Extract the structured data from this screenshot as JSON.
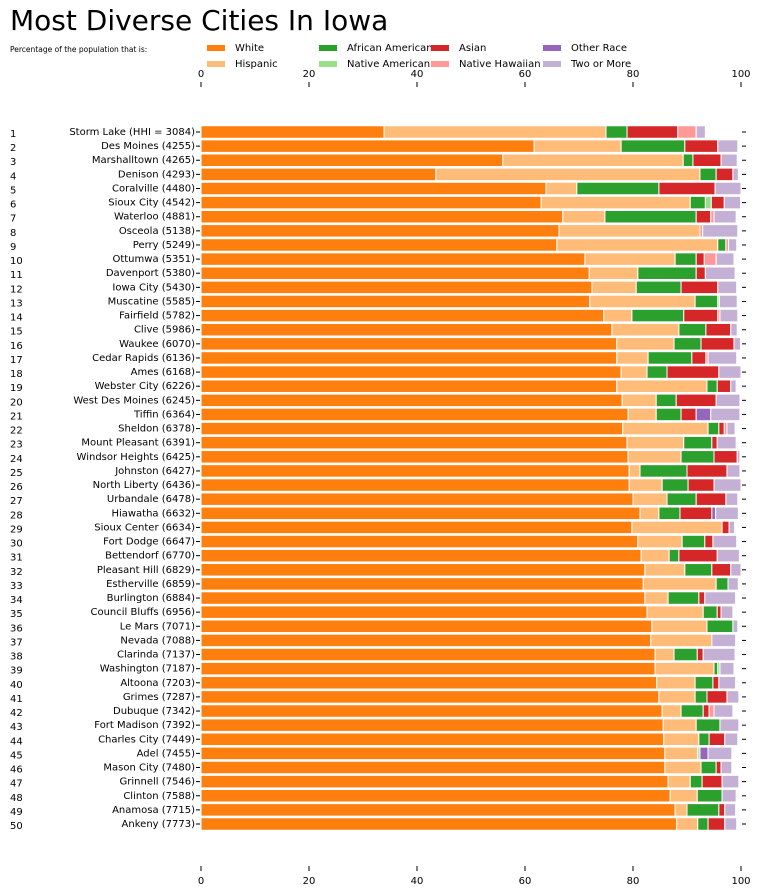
{
  "chart_data": {
    "type": "stacked-barh",
    "title": "Most Diverse Cities In Iowa",
    "subtitle": "Percentage of the population that is:",
    "rank_labels": [
      1,
      2,
      3,
      4,
      5,
      6,
      7,
      8,
      9,
      10,
      11,
      12,
      13,
      14,
      15,
      16,
      17,
      18,
      19,
      20,
      21,
      22,
      23,
      24,
      25,
      26,
      27,
      28,
      29,
      30,
      31,
      32,
      33,
      34,
      35,
      36,
      37,
      38,
      39,
      40,
      41,
      42,
      43,
      44,
      45,
      46,
      47,
      48,
      49,
      50
    ],
    "categories": [
      "Storm Lake (HHI = 3084)",
      "Des Moines (4255)",
      "Marshalltown (4265)",
      "Denison (4293)",
      "Coralville (4480)",
      "Sioux City (4542)",
      "Waterloo (4881)",
      "Osceola (5138)",
      "Perry (5249)",
      "Ottumwa (5351)",
      "Davenport (5380)",
      "Iowa City (5430)",
      "Muscatine (5585)",
      "Fairfield (5782)",
      "Clive (5986)",
      "Waukee (6070)",
      "Cedar Rapids (6136)",
      "Ames (6168)",
      "Webster City (6226)",
      "West Des Moines (6245)",
      "Tiffin (6364)",
      "Sheldon (6378)",
      "Mount Pleasant (6391)",
      "Windsor Heights (6425)",
      "Johnston (6427)",
      "North Liberty (6436)",
      "Urbandale (6478)",
      "Hiawatha (6632)",
      "Sioux Center (6634)",
      "Fort Dodge (6647)",
      "Bettendorf (6770)",
      "Pleasant Hill (6829)",
      "Estherville (6859)",
      "Burlington (6884)",
      "Council Bluffs (6956)",
      "Le Mars (7071)",
      "Nevada (7088)",
      "Clarinda (7137)",
      "Washington (7187)",
      "Altoona (7203)",
      "Grimes (7287)",
      "Dubuque (7342)",
      "Fort Madison (7392)",
      "Charles City (7449)",
      "Adel (7455)",
      "Mason City (7480)",
      "Grinnell (7546)",
      "Clinton (7588)",
      "Anamosa (7715)",
      "Ankeny (7773)"
    ],
    "series": [
      {
        "name": "White",
        "color": "#ff7f0e",
        "values": [
          33.9,
          61.7,
          55.9,
          43.5,
          63.9,
          63.0,
          67.0,
          66.3,
          65.9,
          71.1,
          71.9,
          72.4,
          72.0,
          74.6,
          76.1,
          77.0,
          77.0,
          77.8,
          77.0,
          78.0,
          79.1,
          78.1,
          78.9,
          79.1,
          79.3,
          79.3,
          80.0,
          81.3,
          79.8,
          80.9,
          81.5,
          82.2,
          81.9,
          82.2,
          82.6,
          83.5,
          83.3,
          84.1,
          84.1,
          84.4,
          84.8,
          85.4,
          85.6,
          85.7,
          85.9,
          85.9,
          86.5,
          86.9,
          87.8,
          88.1
        ]
      },
      {
        "name": "Hispanic",
        "color": "#ffbb78",
        "values": [
          41.1,
          16.1,
          33.4,
          48.9,
          5.7,
          27.6,
          7.8,
          26.1,
          29.8,
          16.7,
          9.0,
          8.2,
          19.5,
          5.2,
          12.4,
          10.6,
          5.8,
          4.8,
          16.7,
          6.3,
          5.2,
          15.8,
          10.5,
          9.8,
          2.0,
          6.1,
          6.3,
          3.5,
          16.7,
          8.2,
          5.2,
          7.4,
          13.5,
          4.3,
          10.4,
          10.2,
          11.3,
          3.5,
          10.9,
          7.1,
          6.7,
          3.5,
          6.1,
          6.5,
          6.1,
          6.7,
          4.1,
          5.0,
          2.2,
          3.9
        ]
      },
      {
        "name": "African American",
        "color": "#2ca02c",
        "values": [
          3.9,
          11.8,
          1.8,
          3.0,
          15.2,
          2.8,
          16.9,
          0,
          1.5,
          3.9,
          10.8,
          8.3,
          4.2,
          9.6,
          5.0,
          5.0,
          8.1,
          3.7,
          1.9,
          3.7,
          4.6,
          2.0,
          5.2,
          6.1,
          8.7,
          4.8,
          5.4,
          3.9,
          0,
          4.2,
          1.8,
          5.0,
          2.2,
          5.7,
          2.6,
          4.8,
          0,
          4.3,
          0.7,
          3.3,
          2.2,
          4.1,
          4.4,
          1.9,
          0,
          2.8,
          2.2,
          4.6,
          5.9,
          1.9
        ]
      },
      {
        "name": "Native American",
        "color": "#98df8a",
        "values": [
          0,
          0,
          0,
          0,
          0,
          1.1,
          0,
          0,
          0,
          0,
          0,
          0,
          0.3,
          0,
          0,
          0,
          0,
          0,
          0,
          0,
          0,
          0,
          0,
          0,
          0,
          0,
          0,
          0,
          0,
          0,
          0,
          0,
          0,
          0,
          0,
          0,
          0,
          0,
          0.4,
          0,
          0,
          0,
          0,
          0,
          0.4,
          0,
          0,
          0,
          0,
          0
        ]
      },
      {
        "name": "Asian",
        "color": "#d62728",
        "values": [
          9.4,
          6.1,
          5.2,
          3.1,
          10.4,
          2.4,
          2.7,
          0,
          0,
          1.5,
          1.7,
          6.8,
          0,
          6.3,
          4.6,
          6.1,
          2.6,
          9.6,
          2.5,
          7.4,
          2.8,
          1.0,
          1.0,
          4.3,
          7.4,
          4.8,
          5.5,
          5.9,
          1.3,
          1.5,
          7.1,
          3.5,
          0,
          1.1,
          0.7,
          0,
          0,
          1.1,
          0,
          1.1,
          3.7,
          1.1,
          0,
          2.9,
          0,
          0.9,
          3.7,
          0,
          1.1,
          3.1
        ]
      },
      {
        "name": "Native Hawaiian",
        "color": "#ff9896",
        "values": [
          3.4,
          0,
          0,
          0,
          0,
          0,
          0.6,
          0.5,
          0.5,
          2.2,
          0,
          0,
          0,
          0.4,
          0,
          0,
          0.4,
          0,
          0,
          0,
          0,
          0.5,
          0,
          0,
          0,
          0,
          0,
          0,
          0,
          0,
          0,
          0,
          0,
          0,
          0,
          0,
          0,
          0,
          0,
          0,
          0,
          0.9,
          0,
          0,
          0,
          0,
          0,
          0,
          0,
          0
        ]
      },
      {
        "name": "Other Race",
        "color": "#9467bd",
        "values": [
          0,
          0,
          0,
          0,
          0,
          0,
          0,
          0,
          0,
          0,
          0,
          0,
          0,
          0,
          0,
          0,
          0,
          0,
          0,
          0,
          2.7,
          0,
          0,
          0,
          0,
          0,
          0,
          0.7,
          0,
          0,
          0,
          0,
          0,
          0,
          0,
          0,
          0,
          0,
          0,
          0,
          0,
          0,
          0,
          0,
          1.5,
          0,
          0,
          0,
          0,
          0
        ]
      },
      {
        "name": "Two or More",
        "color": "#c5b0d5",
        "values": [
          1.7,
          3.7,
          3.0,
          1.0,
          4.8,
          3.0,
          4.1,
          6.5,
          1.5,
          3.3,
          5.5,
          3.5,
          3.3,
          3.3,
          1.2,
          1.2,
          5.3,
          4.1,
          1.0,
          4.4,
          5.4,
          1.5,
          3.5,
          0.5,
          2.4,
          5.0,
          2.2,
          4.2,
          1.0,
          4.4,
          4.1,
          1.9,
          1.9,
          5.7,
          2.2,
          0.9,
          4.4,
          5.9,
          2.6,
          3.1,
          2.2,
          3.5,
          3.5,
          2.4,
          4.4,
          2.0,
          3.1,
          2.6,
          2.0,
          2.2
        ]
      }
    ],
    "xlim": [
      0,
      100
    ],
    "xticks": [
      0,
      20,
      40,
      60,
      80,
      100
    ]
  }
}
